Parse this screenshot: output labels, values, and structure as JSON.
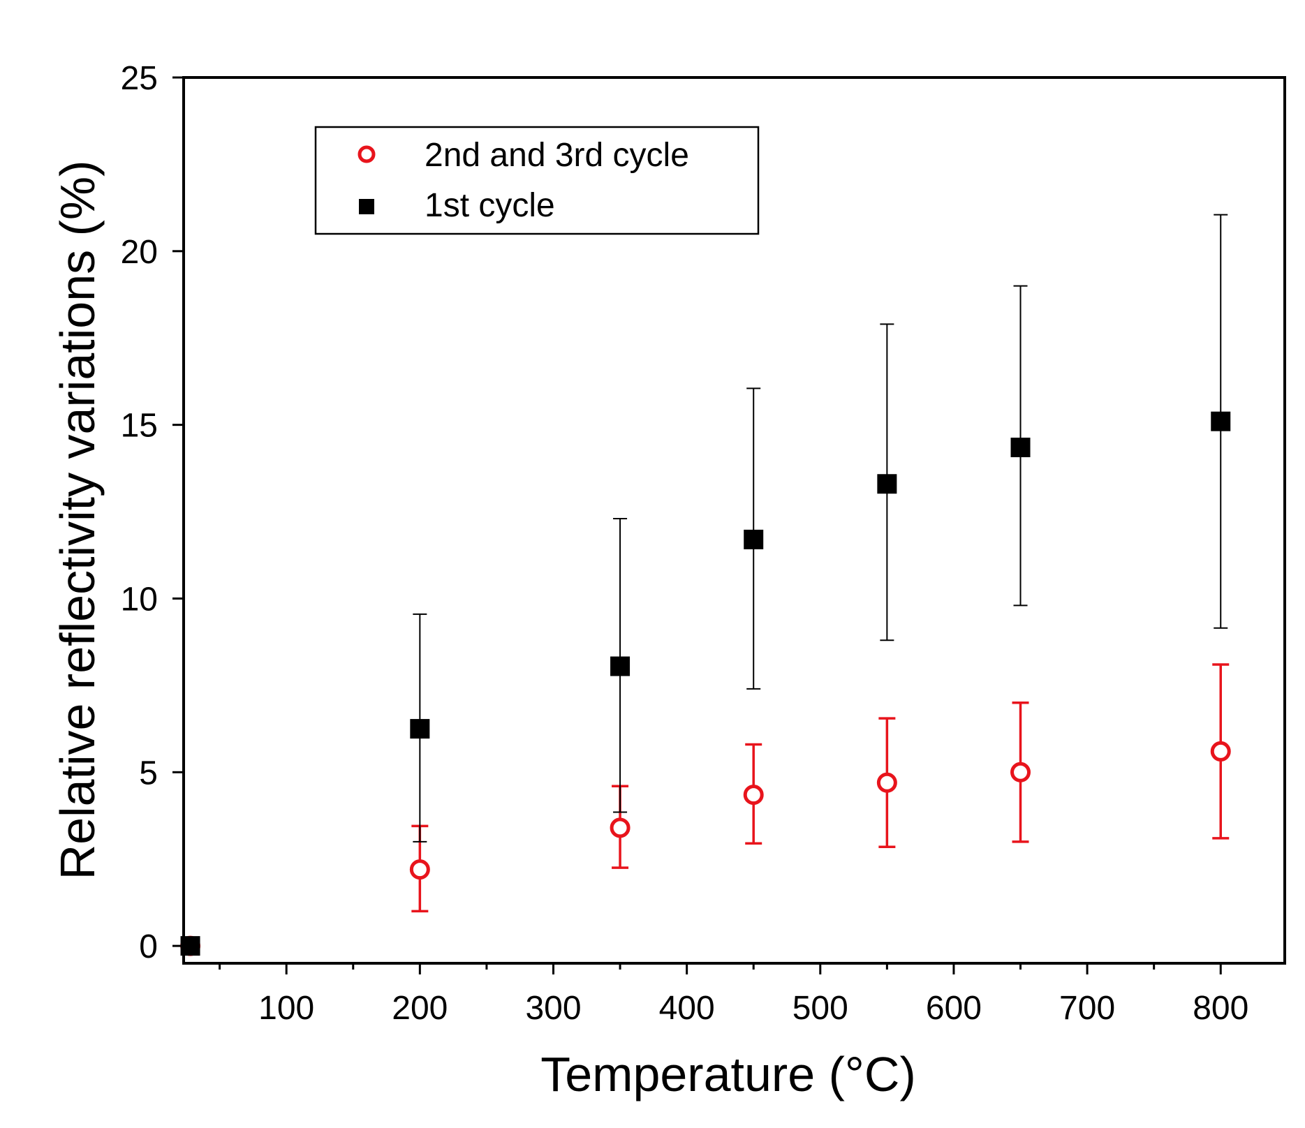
{
  "chart_data": {
    "type": "scatter",
    "title": "",
    "xlabel": "Temperature (°C)",
    "ylabel": "Relative reflectivity variations (%)",
    "xlim": [
      23,
      848
    ],
    "ylim": [
      -0.5,
      25
    ],
    "x_major_ticks": [
      100,
      200,
      300,
      400,
      500,
      600,
      700,
      800
    ],
    "x_minor_ticks": [
      50,
      150,
      250,
      350,
      450,
      550,
      650,
      750,
      850
    ],
    "y_major_ticks": [
      0,
      5,
      10,
      15,
      20,
      25
    ],
    "x_tick_labels": [
      "100",
      "200",
      "300",
      "400",
      "500",
      "600",
      "700",
      "800"
    ],
    "y_tick_labels": [
      "0",
      "5",
      "10",
      "15",
      "20",
      "25"
    ],
    "grid": false,
    "legend_position": "top-left",
    "series": [
      {
        "name": "2nd and 3rd cycle",
        "marker": "open-circle",
        "color": "#e8141c",
        "points": [
          {
            "x": 28,
            "y": 0.0,
            "err_low": 0.0,
            "err_high": 0.0
          },
          {
            "x": 200,
            "y": 2.2,
            "err_low": 1.0,
            "err_high": 3.45
          },
          {
            "x": 350,
            "y": 3.4,
            "err_low": 2.25,
            "err_high": 4.6
          },
          {
            "x": 450,
            "y": 4.35,
            "err_low": 2.95,
            "err_high": 5.8
          },
          {
            "x": 550,
            "y": 4.7,
            "err_low": 2.85,
            "err_high": 6.55
          },
          {
            "x": 650,
            "y": 5.0,
            "err_low": 3.0,
            "err_high": 7.0
          },
          {
            "x": 800,
            "y": 5.6,
            "err_low": 3.1,
            "err_high": 8.1
          }
        ]
      },
      {
        "name": "1st cycle",
        "marker": "filled-square",
        "color": "#000000",
        "points": [
          {
            "x": 28,
            "y": 0.0,
            "err_low": 0.0,
            "err_high": 0.0
          },
          {
            "x": 200,
            "y": 6.25,
            "err_low": 3.0,
            "err_high": 9.55
          },
          {
            "x": 350,
            "y": 8.05,
            "err_low": 3.85,
            "err_high": 12.3
          },
          {
            "x": 450,
            "y": 11.7,
            "err_low": 7.4,
            "err_high": 16.05
          },
          {
            "x": 550,
            "y": 13.3,
            "err_low": 8.8,
            "err_high": 17.9
          },
          {
            "x": 650,
            "y": 14.35,
            "err_low": 9.8,
            "err_high": 19.0
          },
          {
            "x": 800,
            "y": 15.1,
            "err_low": 9.15,
            "err_high": 21.05
          }
        ]
      }
    ]
  }
}
